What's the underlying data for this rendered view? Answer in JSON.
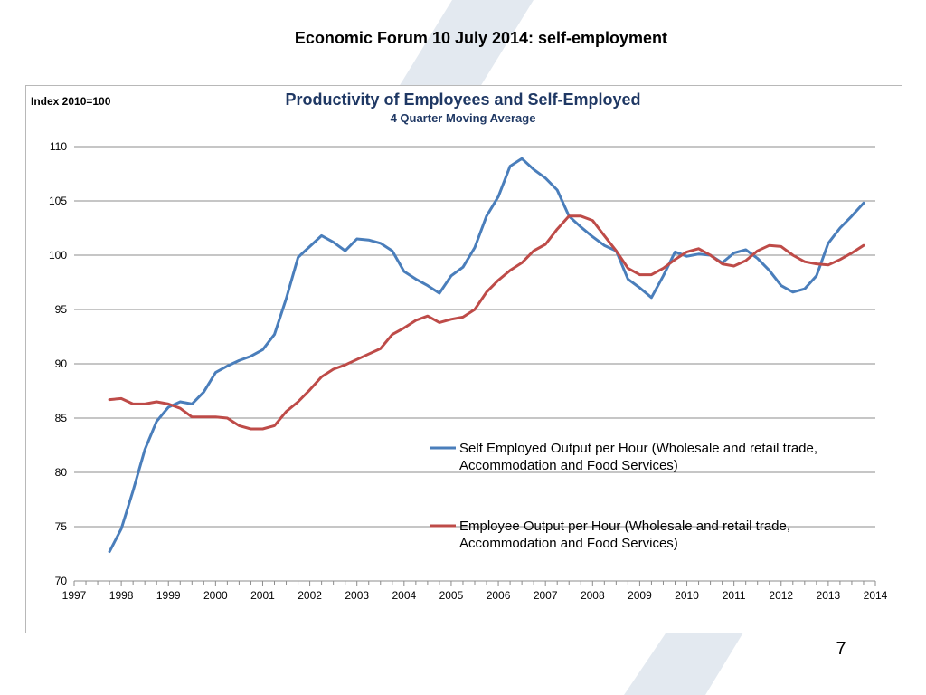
{
  "slide": {
    "title": "Economic Forum 10 July 2014: self-employment",
    "page_number": "7"
  },
  "colors": {
    "self_employed": "#4a7ebb",
    "employee": "#be4b48",
    "gridline": "#8c8c8c",
    "title": "#1f3864",
    "watermark": "#dfe6ee"
  },
  "chart_data": {
    "type": "line",
    "title": "Productivity of Employees and Self-Employed",
    "subtitle": "4 Quarter Moving Average",
    "ylabel": "Index 2010=100",
    "xlabel": "",
    "ylim": [
      70,
      110
    ],
    "yticks": [
      "70",
      "75",
      "80",
      "85",
      "90",
      "95",
      "100",
      "105",
      "110"
    ],
    "xlim": [
      1997,
      2014
    ],
    "xticks": [
      "1997",
      "1998",
      "1999",
      "2000",
      "2001",
      "2002",
      "2003",
      "2004",
      "2005",
      "2006",
      "2007",
      "2008",
      "2009",
      "2010",
      "2011",
      "2012",
      "2013",
      "2014"
    ],
    "grid": "horizontal",
    "legend_position": "center-right",
    "x_start": "1997 Q4",
    "x_step": "quarter",
    "series": [
      {
        "name": "Self Employed Output per Hour (Wholesale and retail trade, Accommodation and Food Services)",
        "color": "#4a7ebb",
        "values": [
          72.7,
          74.8,
          78.3,
          82.1,
          84.7,
          86.0,
          86.5,
          86.3,
          87.4,
          89.2,
          89.8,
          90.3,
          90.7,
          91.3,
          92.7,
          96.0,
          99.8,
          100.8,
          101.8,
          101.2,
          100.4,
          101.5,
          101.4,
          101.1,
          100.4,
          98.5,
          97.8,
          97.2,
          96.5,
          98.1,
          98.9,
          100.7,
          103.6,
          105.4,
          108.2,
          108.9,
          107.9,
          107.1,
          106.0,
          103.6,
          102.6,
          101.7,
          100.9,
          100.4,
          97.8,
          97.0,
          96.1,
          98.1,
          100.3,
          99.9,
          100.1,
          100.0,
          99.3,
          100.2,
          100.5,
          99.7,
          98.6,
          97.2,
          96.6,
          96.9,
          98.1,
          101.1,
          102.5,
          103.6,
          104.8
        ]
      },
      {
        "name": "Employee Output per Hour (Wholesale and retail trade, Accommodation and Food Services)",
        "color": "#be4b48",
        "values": [
          86.7,
          86.8,
          86.3,
          86.3,
          86.5,
          86.3,
          85.9,
          85.1,
          85.1,
          85.1,
          85.0,
          84.3,
          84.0,
          84.0,
          84.3,
          85.6,
          86.5,
          87.6,
          88.8,
          89.5,
          89.9,
          90.4,
          90.9,
          91.4,
          92.7,
          93.3,
          94.0,
          94.4,
          93.8,
          94.1,
          94.3,
          95.0,
          96.6,
          97.7,
          98.6,
          99.3,
          100.4,
          101.0,
          102.4,
          103.6,
          103.6,
          103.2,
          101.8,
          100.4,
          98.8,
          98.2,
          98.2,
          98.8,
          99.6,
          100.3,
          100.6,
          100.0,
          99.2,
          99.0,
          99.5,
          100.4,
          100.9,
          100.8,
          100.0,
          99.4,
          99.2,
          99.1,
          99.6,
          100.2,
          100.9
        ]
      }
    ]
  }
}
